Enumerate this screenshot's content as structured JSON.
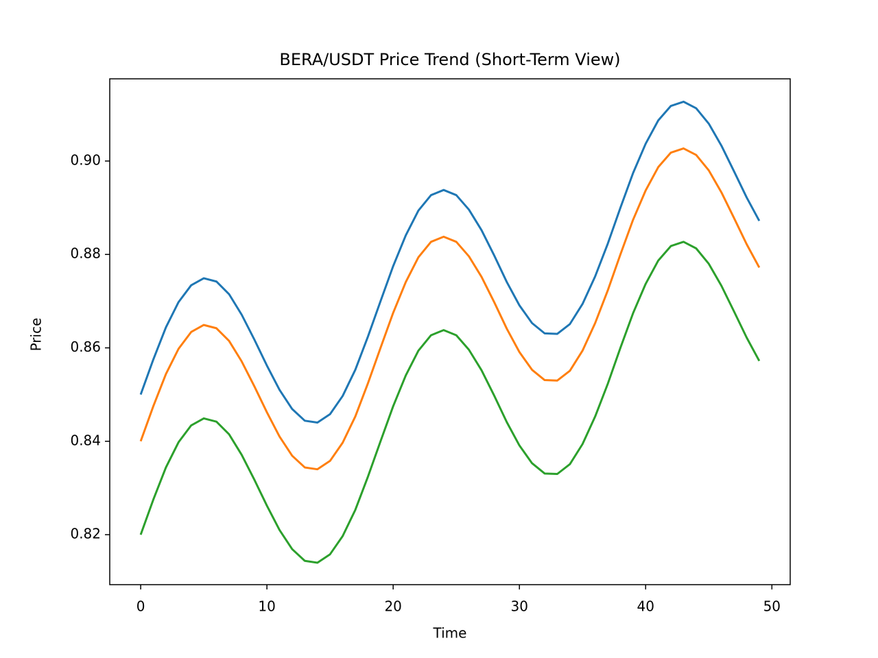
{
  "chart_data": {
    "type": "line",
    "title": "BERA/USDT Price Trend (Short-Term View)",
    "x_label": "Time",
    "y_label": "Price",
    "x": [
      0,
      1,
      2,
      3,
      4,
      5,
      6,
      7,
      8,
      9,
      10,
      11,
      12,
      13,
      14,
      15,
      16,
      17,
      18,
      19,
      20,
      21,
      22,
      23,
      24,
      25,
      26,
      27,
      28,
      29,
      30,
      31,
      32,
      33,
      34,
      35,
      36,
      37,
      38,
      39,
      40,
      41,
      42,
      43,
      44,
      45,
      46,
      47,
      48,
      49
    ],
    "series": [
      {
        "color": "#1f77b4",
        "values": [
          0.85,
          0.8575,
          0.8644,
          0.8698,
          0.8734,
          0.8749,
          0.8742,
          0.8715,
          0.8671,
          0.8618,
          0.8562,
          0.851,
          0.8469,
          0.8444,
          0.844,
          0.8458,
          0.8497,
          0.8553,
          0.8624,
          0.87,
          0.8775,
          0.8841,
          0.8894,
          0.8927,
          0.8938,
          0.8927,
          0.8896,
          0.8852,
          0.8798,
          0.8741,
          0.8691,
          0.8653,
          0.8631,
          0.863,
          0.8651,
          0.8694,
          0.8753,
          0.8823,
          0.89,
          0.8974,
          0.9037,
          0.9087,
          0.9118,
          0.9127,
          0.9113,
          0.908,
          0.9033,
          0.8978,
          0.8922,
          0.8872
        ]
      },
      {
        "color": "#ff7f0e",
        "values": [
          0.84,
          0.8475,
          0.8544,
          0.8598,
          0.8634,
          0.8649,
          0.8642,
          0.8615,
          0.8571,
          0.8518,
          0.8462,
          0.841,
          0.8369,
          0.8344,
          0.834,
          0.8358,
          0.8397,
          0.8453,
          0.8524,
          0.86,
          0.8675,
          0.8741,
          0.8794,
          0.8827,
          0.8838,
          0.8827,
          0.8796,
          0.8752,
          0.8698,
          0.8641,
          0.8591,
          0.8553,
          0.8531,
          0.853,
          0.8551,
          0.8594,
          0.8653,
          0.8723,
          0.88,
          0.8874,
          0.8937,
          0.8987,
          0.9018,
          0.9027,
          0.9013,
          0.898,
          0.8933,
          0.8878,
          0.8822,
          0.8772
        ]
      },
      {
        "color": "#2ca02c",
        "values": [
          0.82,
          0.8275,
          0.8344,
          0.8398,
          0.8434,
          0.8449,
          0.8442,
          0.8415,
          0.8371,
          0.8318,
          0.8262,
          0.821,
          0.8169,
          0.8144,
          0.814,
          0.8158,
          0.8197,
          0.8253,
          0.8324,
          0.84,
          0.8475,
          0.8541,
          0.8594,
          0.8627,
          0.8638,
          0.8627,
          0.8596,
          0.8552,
          0.8498,
          0.8441,
          0.8391,
          0.8353,
          0.8331,
          0.833,
          0.8351,
          0.8394,
          0.8453,
          0.8523,
          0.86,
          0.8674,
          0.8737,
          0.8787,
          0.8818,
          0.8827,
          0.8813,
          0.878,
          0.8733,
          0.8678,
          0.8622,
          0.8572
        ]
      }
    ],
    "xlim": [
      -2.45,
      51.45
    ],
    "xticks": [
      0,
      10,
      20,
      30,
      40,
      50
    ],
    "ylim": [
      0.8093,
      0.9176
    ],
    "yticks": [
      0.82,
      0.84,
      0.86,
      0.88,
      {
        "value": 0.9,
        "label": "0.90"
      }
    ]
  }
}
